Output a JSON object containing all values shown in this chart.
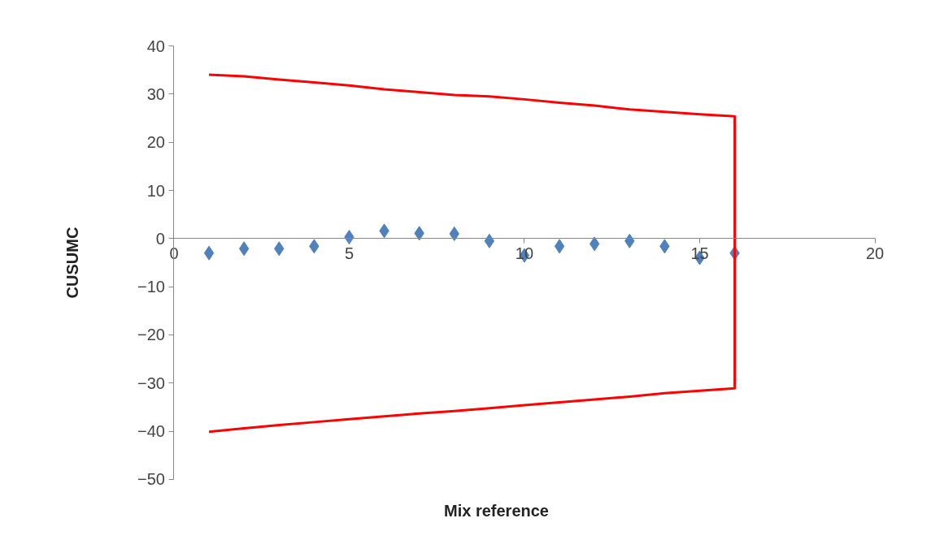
{
  "chart_data": {
    "type": "scatter",
    "xlabel": "Mix reference",
    "ylabel": "CUSUMC",
    "xlim": [
      0,
      20
    ],
    "ylim": [
      -50,
      40
    ],
    "xticks": [
      0,
      5,
      10,
      15,
      20
    ],
    "yticks": [
      -50,
      -40,
      -30,
      -20,
      -10,
      0,
      10,
      20,
      30,
      40
    ],
    "grid": false,
    "marker": "diamond",
    "series": [
      {
        "color": "#4f81bd",
        "x": [
          1,
          2,
          3,
          4,
          5,
          6,
          7,
          8,
          9,
          10,
          11,
          12,
          13,
          14,
          15,
          16
        ],
        "values": [
          -3.0,
          -2.1,
          -2.1,
          -1.6,
          0.3,
          1.6,
          1.1,
          1.0,
          -0.5,
          -3.5,
          -1.6,
          -1.1,
          -0.5,
          -1.6,
          -4.0,
          -3.0
        ]
      },
      {
        "type": "line",
        "color": "#ff0000",
        "marker": "none",
        "line_style": "solid",
        "x": [
          1,
          2,
          3,
          4,
          5,
          6,
          7,
          8,
          9,
          10,
          11,
          12,
          13,
          14,
          15,
          16,
          16,
          15,
          14,
          13,
          12,
          11,
          10,
          9,
          8,
          7,
          6,
          5,
          4,
          3,
          2,
          1
        ],
        "values": [
          34.0,
          33.7,
          33.0,
          32.4,
          31.8,
          31.0,
          30.4,
          29.8,
          29.5,
          28.9,
          28.2,
          27.6,
          26.8,
          26.3,
          25.8,
          25.4,
          -31.1,
          -31.6,
          -32.1,
          -32.8,
          -33.4,
          -34.0,
          -34.6,
          -35.2,
          -35.8,
          -36.3,
          -36.9,
          -37.5,
          -38.1,
          -38.7,
          -39.4,
          -40.1
        ]
      }
    ]
  }
}
